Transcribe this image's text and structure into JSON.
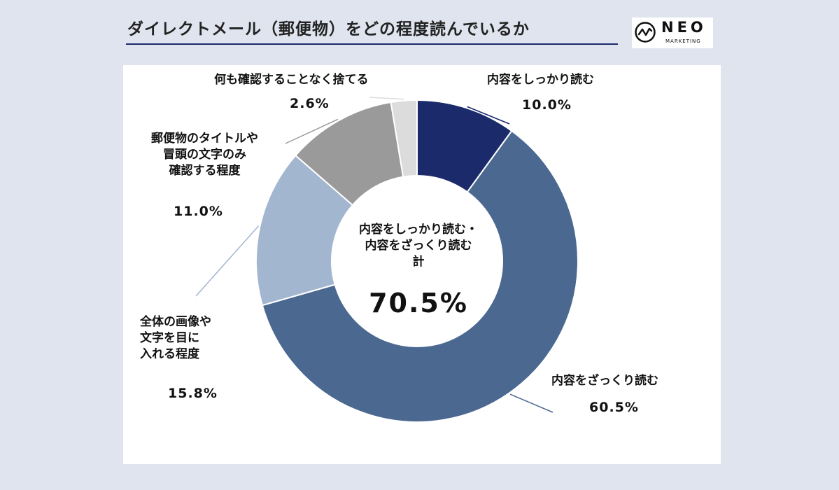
{
  "header": {
    "title": "ダイレクトメール（郵便物）をどの程度読んでいるか",
    "logo": {
      "word": "NEO",
      "sub": "MARKETING"
    }
  },
  "chart_data": {
    "type": "pie",
    "title": "ダイレクトメール（郵便物）をどの程度読んでいるか",
    "slices": [
      {
        "label": "内容をしっかり読む",
        "value": 10.0,
        "value_label": "10.0%",
        "color": "#1b2a6b"
      },
      {
        "label": "内容をざっくり読む",
        "value": 60.5,
        "value_label": "60.5%",
        "color": "#4b6891"
      },
      {
        "label": "全体の画像や文字を目に入れる程度",
        "value": 15.8,
        "value_label": "15.8%",
        "color": "#a3b6cf"
      },
      {
        "label": "郵便物のタイトルや冒頭の文字のみ確認する程度",
        "value": 11.0,
        "value_label": "11.0%",
        "color": "#9a9a9a"
      },
      {
        "label": "何も確認することなく捨てる",
        "value": 2.6,
        "value_label": "2.6%",
        "color": "#dcdcdc"
      }
    ],
    "center_caption": "内容をしっかり読む・\n内容をざっくり読む\n計",
    "center_value": "70.5%",
    "legend": "none"
  },
  "labels": {
    "s0": "内容をしっかり読む",
    "s1": "内容をざっくり読む",
    "s2": "全体の画像や\n文字を目に\n入れる程度",
    "s3": "郵便物のタイトルや\n冒頭の文字のみ\n確認する程度",
    "s4": "何も確認することなく捨てる"
  },
  "pcts": {
    "s0": "10.0%",
    "s1": "60.5%",
    "s2": "15.8%",
    "s3": "11.0%",
    "s4": "2.6%"
  }
}
